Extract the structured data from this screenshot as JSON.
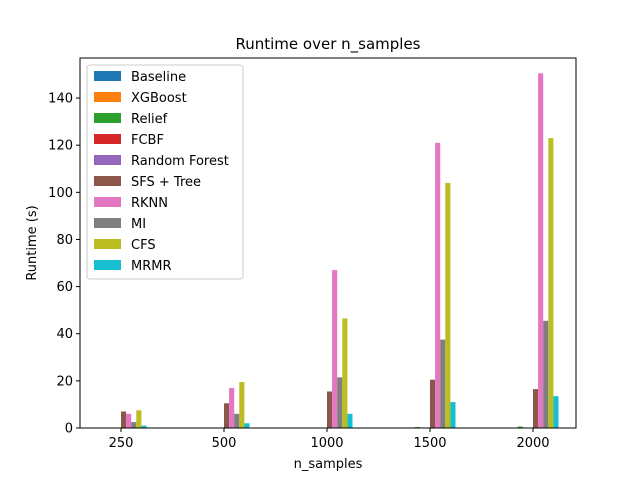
{
  "chart_data": {
    "type": "bar",
    "title": "Runtime over n_samples",
    "xlabel": "n_samples",
    "ylabel": "Runtime (s)",
    "categories": [
      "250",
      "500",
      "1000",
      "1500",
      "2000"
    ],
    "ylim": [
      0,
      157
    ],
    "yticks": [
      0,
      20,
      40,
      60,
      80,
      100,
      120,
      140
    ],
    "grid": false,
    "legend_position": "top-left",
    "series": [
      {
        "name": "Baseline",
        "color": "#1f77b4",
        "values": [
          0,
          0,
          0,
          0,
          0
        ]
      },
      {
        "name": "XGBoost",
        "color": "#ff7f0e",
        "values": [
          0,
          0,
          0,
          0,
          0
        ]
      },
      {
        "name": "Relief",
        "color": "#2ca02c",
        "values": [
          0,
          0,
          0,
          0.4,
          0.6
        ]
      },
      {
        "name": "FCBF",
        "color": "#d62728",
        "values": [
          0,
          0,
          0,
          0,
          0
        ]
      },
      {
        "name": "Random Forest",
        "color": "#9467bd",
        "values": [
          0,
          0,
          0,
          0,
          0
        ]
      },
      {
        "name": "SFS + Tree",
        "color": "#8c564b",
        "values": [
          7,
          10.5,
          15.5,
          20.5,
          16.5
        ]
      },
      {
        "name": "RKNN",
        "color": "#e377c2",
        "values": [
          6,
          17,
          67,
          121,
          150.5
        ]
      },
      {
        "name": "MI",
        "color": "#7f7f7f",
        "values": [
          2.5,
          6,
          21.5,
          37.5,
          45.5
        ]
      },
      {
        "name": "CFS",
        "color": "#bcbd22",
        "values": [
          7.5,
          19.5,
          46.5,
          104,
          123
        ]
      },
      {
        "name": "MRMR",
        "color": "#17becf",
        "values": [
          1,
          2,
          6,
          11,
          13.5
        ]
      }
    ]
  }
}
